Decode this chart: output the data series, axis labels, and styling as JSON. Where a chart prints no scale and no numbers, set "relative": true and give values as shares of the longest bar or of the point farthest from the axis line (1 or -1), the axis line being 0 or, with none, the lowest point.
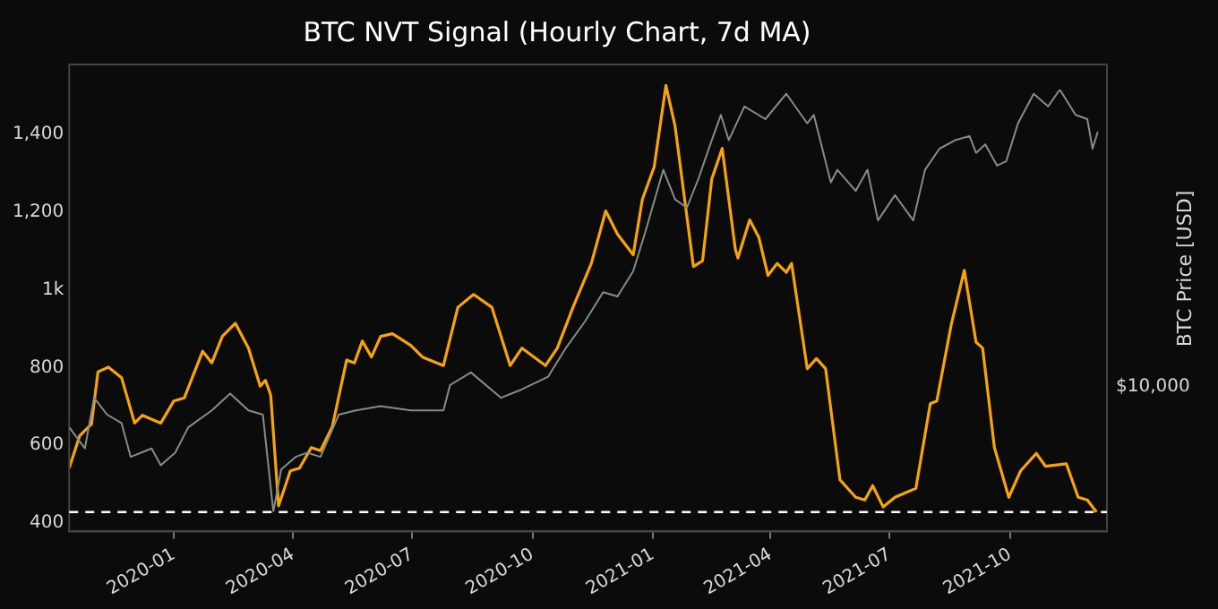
{
  "chart_data": [
    {
      "type": "line",
      "title": "BTC NVT Signal (Hourly Chart, 7d MA)",
      "xlim": [
        "2019-10-13",
        "2021-12-14"
      ],
      "xticks": [
        {
          "value": "2020-01-01",
          "label": "2020-01"
        },
        {
          "value": "2020-04-01",
          "label": "2020-04"
        },
        {
          "value": "2020-07-01",
          "label": "2020-07"
        },
        {
          "value": "2020-10-01",
          "label": "2020-10"
        },
        {
          "value": "2021-01-01",
          "label": "2021-01"
        },
        {
          "value": "2021-04-01",
          "label": "2021-04"
        },
        {
          "value": "2021-07-01",
          "label": "2021-07"
        },
        {
          "value": "2021-10-01",
          "label": "2021-10"
        }
      ],
      "ylim": [
        378,
        1580
      ],
      "yticks": [
        400,
        600,
        800,
        {
          "value": 1000,
          "label": "1k"
        },
        {
          "value": 1200,
          "label": "1,200"
        },
        {
          "value": 1400,
          "label": "1,400"
        }
      ],
      "grid": false,
      "legend": false,
      "marker": "none",
      "line_style": "solid",
      "ref_lines": [
        {
          "axis": "y",
          "value": 428,
          "color": "#ffffff",
          "line_style": "dashed"
        }
      ],
      "series": [
        {
          "color": "#f7a30a",
          "x": [
            "2019-10-13",
            "2019-10-21",
            "2019-10-30",
            "2019-11-04",
            "2019-11-12",
            "2019-11-22",
            "2019-12-02",
            "2019-12-08",
            "2019-12-22",
            "2020-01-01",
            "2020-01-09",
            "2020-01-23",
            "2020-01-30",
            "2020-02-07",
            "2020-02-17",
            "2020-02-27",
            "2020-03-07",
            "2020-03-11",
            "2020-03-15",
            "2020-03-21",
            "2020-03-30",
            "2020-04-06",
            "2020-04-15",
            "2020-04-22",
            "2020-05-01",
            "2020-05-12",
            "2020-05-18",
            "2020-05-24",
            "2020-05-31",
            "2020-06-07",
            "2020-06-16",
            "2020-06-30",
            "2020-07-09",
            "2020-07-25",
            "2020-08-05",
            "2020-08-17",
            "2020-08-31",
            "2020-09-14",
            "2020-09-23",
            "2020-10-11",
            "2020-10-20",
            "2020-11-01",
            "2020-11-15",
            "2020-11-26",
            "2020-12-05",
            "2020-12-17",
            "2020-12-24",
            "2021-01-02",
            "2021-01-11",
            "2021-01-18",
            "2021-02-01",
            "2021-02-08",
            "2021-02-15",
            "2021-02-23",
            "2021-03-05",
            "2021-03-07",
            "2021-03-16",
            "2021-03-23",
            "2021-03-30",
            "2021-04-06",
            "2021-04-13",
            "2021-04-17",
            "2021-04-22",
            "2021-04-29",
            "2021-05-06",
            "2021-05-13",
            "2021-05-24",
            "2021-06-05",
            "2021-06-12",
            "2021-06-18",
            "2021-06-26",
            "2021-07-05",
            "2021-07-21",
            "2021-08-01",
            "2021-08-06",
            "2021-08-17",
            "2021-08-27",
            "2021-09-05",
            "2021-09-10",
            "2021-09-19",
            "2021-09-30",
            "2021-10-09",
            "2021-10-21",
            "2021-10-28",
            "2021-11-13",
            "2021-11-22",
            "2021-11-29",
            "2021-12-06"
          ],
          "values": [
            541,
            624,
            654,
            789,
            801,
            774,
            657,
            677,
            657,
            714,
            722,
            842,
            812,
            880,
            914,
            850,
            752,
            767,
            729,
            444,
            534,
            541,
            594,
            586,
            647,
            819,
            812,
            868,
            827,
            880,
            887,
            857,
            827,
            805,
            955,
            988,
            955,
            805,
            850,
            805,
            850,
            955,
            1068,
            1203,
            1143,
            1090,
            1233,
            1316,
            1526,
            1421,
            1060,
            1075,
            1285,
            1364,
            1105,
            1082,
            1180,
            1135,
            1037,
            1068,
            1045,
            1068,
            955,
            797,
            823,
            797,
            511,
            466,
            459,
            496,
            441,
            466,
            489,
            707,
            714,
            910,
            1050,
            865,
            850,
            594,
            466,
            534,
            579,
            546,
            552,
            466,
            459,
            428
          ]
        }
      ]
    },
    {
      "type": "line",
      "relative": true,
      "ylabel": "BTC Price [USD]",
      "annotations": [
        "$10,000"
      ],
      "legend": false,
      "marker": "none",
      "line_style": "solid",
      "xlim": [
        "2019-10-13",
        "2021-12-14"
      ],
      "series": [
        {
          "color": "#8a8a8a",
          "x": [
            "2019-10-13",
            "2019-10-25",
            "2019-11-01",
            "2019-11-11",
            "2019-11-22",
            "2019-11-29",
            "2019-12-15",
            "2019-12-22",
            "2020-01-02",
            "2020-01-12",
            "2020-01-30",
            "2020-02-13",
            "2020-02-27",
            "2020-03-09",
            "2020-03-17",
            "2020-03-23",
            "2020-04-03",
            "2020-04-12",
            "2020-04-22",
            "2020-05-06",
            "2020-05-19",
            "2020-06-07",
            "2020-06-30",
            "2020-07-25",
            "2020-07-30",
            "2020-08-15",
            "2020-09-07",
            "2020-09-23",
            "2020-10-13",
            "2020-10-27",
            "2020-11-10",
            "2020-11-24",
            "2020-12-05",
            "2020-12-17",
            "2020-12-26",
            "2021-01-09",
            "2021-01-18",
            "2021-01-27",
            "2021-02-05",
            "2021-02-15",
            "2021-02-22",
            "2021-02-28",
            "2021-03-12",
            "2021-03-28",
            "2021-04-13",
            "2021-04-29",
            "2021-05-04",
            "2021-05-17",
            "2021-05-22",
            "2021-06-05",
            "2021-06-14",
            "2021-06-22",
            "2021-07-05",
            "2021-07-19",
            "2021-07-28",
            "2021-08-08",
            "2021-08-20",
            "2021-08-31",
            "2021-09-05",
            "2021-09-12",
            "2021-09-21",
            "2021-09-28",
            "2021-10-07",
            "2021-10-19",
            "2021-10-30",
            "2021-11-08",
            "2021-11-20",
            "2021-11-29",
            "2021-12-03",
            "2021-12-07"
          ],
          "values": [
            0.2,
            0.15,
            0.27,
            0.23,
            0.21,
            0.13,
            0.15,
            0.11,
            0.14,
            0.2,
            0.24,
            0.28,
            0.24,
            0.23,
            0,
            0.1,
            0.13,
            0.14,
            0.13,
            0.23,
            0.24,
            0.25,
            0.24,
            0.24,
            0.3,
            0.33,
            0.27,
            0.29,
            0.32,
            0.39,
            0.45,
            0.52,
            0.51,
            0.57,
            0.66,
            0.81,
            0.74,
            0.72,
            0.79,
            0.88,
            0.94,
            0.88,
            0.96,
            0.93,
            0.99,
            0.92,
            0.94,
            0.78,
            0.81,
            0.76,
            0.81,
            0.69,
            0.75,
            0.69,
            0.81,
            0.86,
            0.88,
            0.89,
            0.85,
            0.87,
            0.82,
            0.83,
            0.92,
            0.99,
            0.96,
            1,
            0.94,
            0.93,
            0.86,
            0.9
          ]
        }
      ]
    }
  ]
}
